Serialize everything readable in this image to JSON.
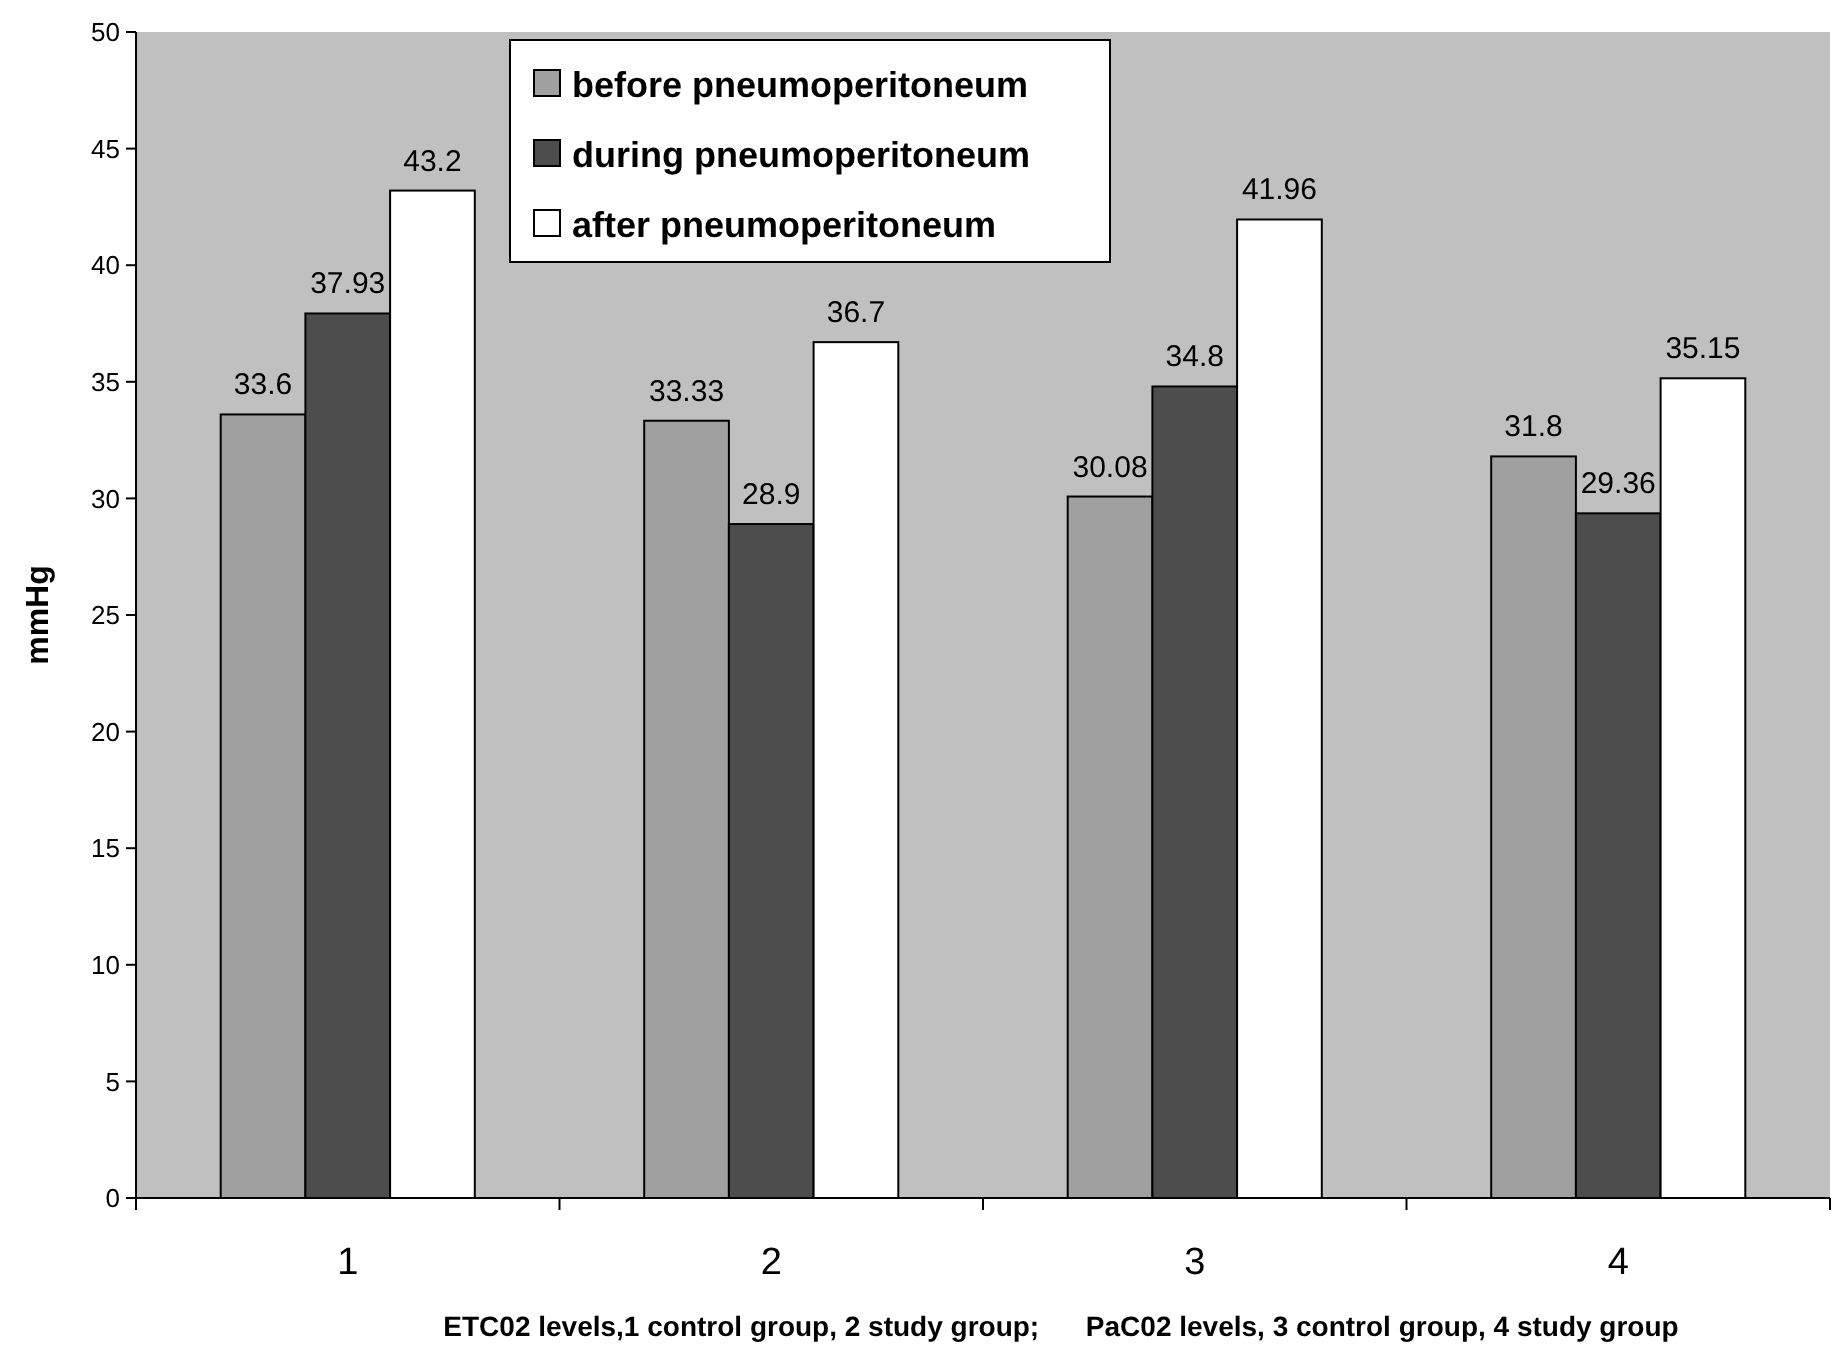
{
  "chart_data": {
    "type": "bar",
    "ylabel": "mmHg",
    "xlabel": "ETC02 levels,1 control group, 2 study group;      PaC02 levels, 3 control group, 4 study group",
    "categories": [
      "1",
      "2",
      "3",
      "4"
    ],
    "series": [
      {
        "name": "before pneumoperitoneum",
        "color": "#a0a0a0",
        "values": [
          33.6,
          33.33,
          30.08,
          31.8
        ]
      },
      {
        "name": "during pneumoperitoneum",
        "color": "#4d4d4d",
        "values": [
          37.93,
          28.9,
          34.8,
          29.36
        ]
      },
      {
        "name": "after pneumoperitoneum",
        "color": "#ffffff",
        "values": [
          43.2,
          36.7,
          41.96,
          35.15
        ]
      }
    ],
    "ylim": [
      0,
      50
    ],
    "yticks": [
      0,
      5,
      10,
      15,
      20,
      25,
      30,
      35,
      40,
      45,
      50
    ],
    "data_labels": true,
    "legend": "top",
    "grid": false
  }
}
